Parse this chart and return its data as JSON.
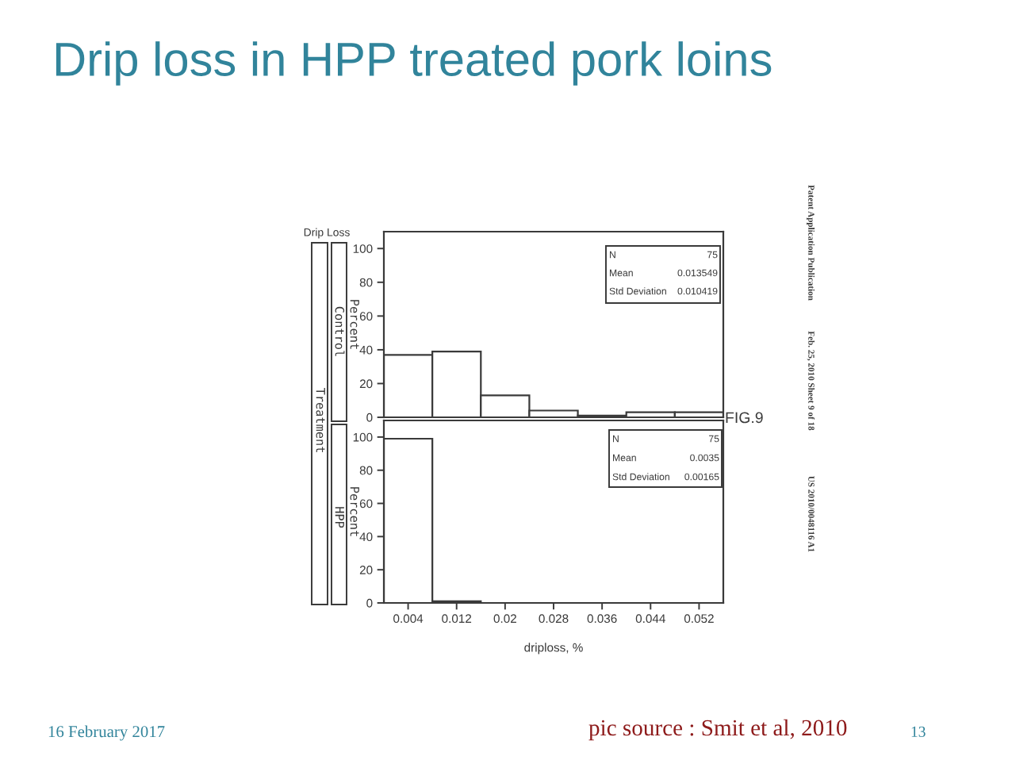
{
  "chart_data": [
    {
      "type": "histogram",
      "title": "Drip loss in HPP treated pork loins",
      "ylabel": "Percent",
      "color": "#ffffff",
      "bins": [
        0,
        0.008,
        0.016,
        0.024,
        0.032,
        0.04,
        0.048,
        0.056
      ],
      "values": [
        37,
        39,
        13,
        4,
        1,
        3,
        3
      ],
      "xlim": [
        0,
        0.056
      ],
      "ylim": [
        0,
        110
      ],
      "yticks": [
        0,
        20,
        40,
        60,
        80,
        100
      ],
      "tick_labels": "y",
      "annotations": [
        "N",
        "75",
        "Mean",
        "0.013549",
        "Std Deviation",
        "0.010419",
        "Control",
        "Drip Loss",
        "Treatment",
        "FIG.9",
        "Patent Application Publication",
        "Feb. 25, 2010 Sheet 9 of 18",
        "US 2010/0048116 A1"
      ]
    },
    {
      "type": "histogram",
      "xlabel": "driploss, %",
      "ylabel": "Percent",
      "color": "#ffffff",
      "bins": [
        0,
        0.008,
        0.016,
        0.024,
        0.032,
        0.04,
        0.048,
        0.056
      ],
      "values": [
        99,
        1,
        0,
        0,
        0,
        0,
        0
      ],
      "xlim": [
        0,
        0.056
      ],
      "ylim": [
        0,
        110
      ],
      "xticks": [
        0.004,
        0.012,
        0.02,
        0.028,
        0.036,
        0.044,
        0.052
      ],
      "yticks": [
        0,
        20,
        40,
        60,
        80,
        100
      ],
      "annotations": [
        "N",
        "75",
        "Mean",
        "0.0035",
        "Std Deviation",
        "0.00165",
        "HPP",
        "16 February 2017",
        "pic source : Smit et al, 2010",
        "13"
      ]
    }
  ]
}
